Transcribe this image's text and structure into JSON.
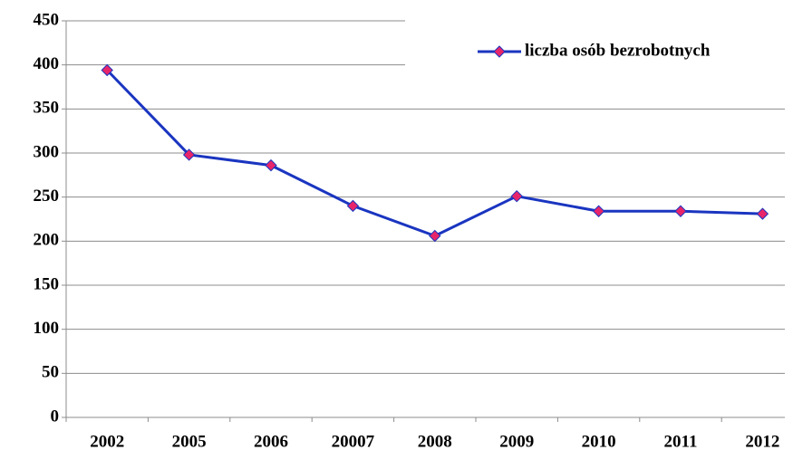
{
  "chart_data": {
    "type": "line",
    "categories": [
      "2002",
      "2005",
      "2006",
      "20007",
      "2008",
      "2009",
      "2010",
      "2011",
      "2012"
    ],
    "series": [
      {
        "name": "liczba osób bezrobotnych",
        "color": "#1a35c0",
        "marker_color": "#e8256a",
        "values": [
          394,
          298,
          286,
          240,
          206,
          251,
          234,
          234,
          231
        ]
      }
    ],
    "ylim": [
      0,
      450
    ],
    "yticks": [
      0,
      50,
      100,
      150,
      200,
      250,
      300,
      350,
      400,
      450
    ],
    "grid": true,
    "legend": "top-right"
  }
}
